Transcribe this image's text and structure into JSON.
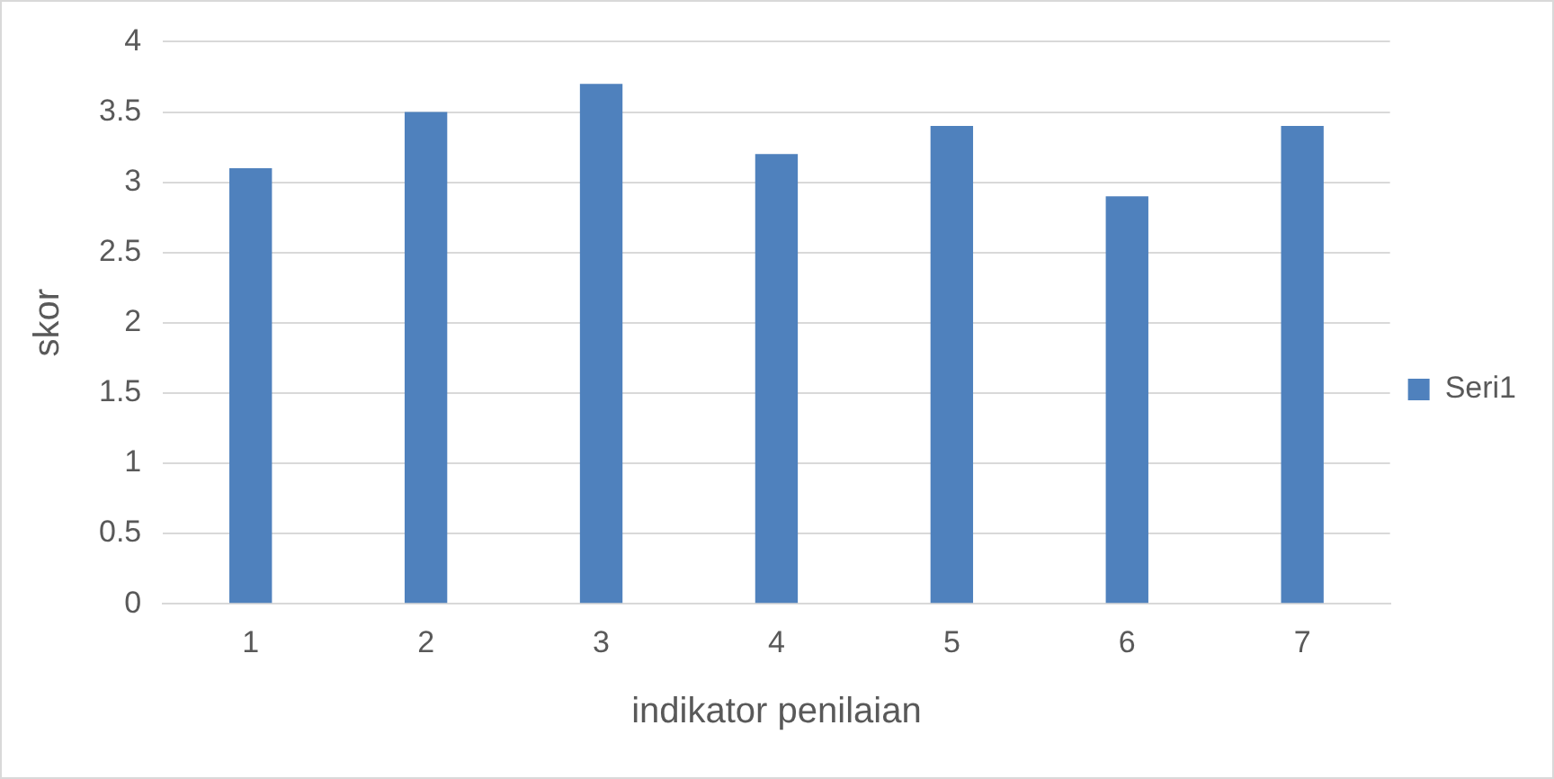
{
  "chart_data": {
    "type": "bar",
    "xlabel": "indikator penilaian",
    "ylabel": "skor",
    "categories": [
      "1",
      "2",
      "3",
      "4",
      "5",
      "6",
      "7"
    ],
    "series": [
      {
        "name": "Seri1",
        "color": "#4f81bd",
        "values": [
          3.1,
          3.5,
          3.7,
          3.2,
          3.4,
          2.9,
          3.4
        ]
      }
    ],
    "ylim": [
      0,
      4
    ],
    "yticks": [
      0,
      0.5,
      1,
      1.5,
      2,
      2.5,
      3,
      3.5,
      4
    ],
    "grid": "y",
    "legend": "right"
  }
}
